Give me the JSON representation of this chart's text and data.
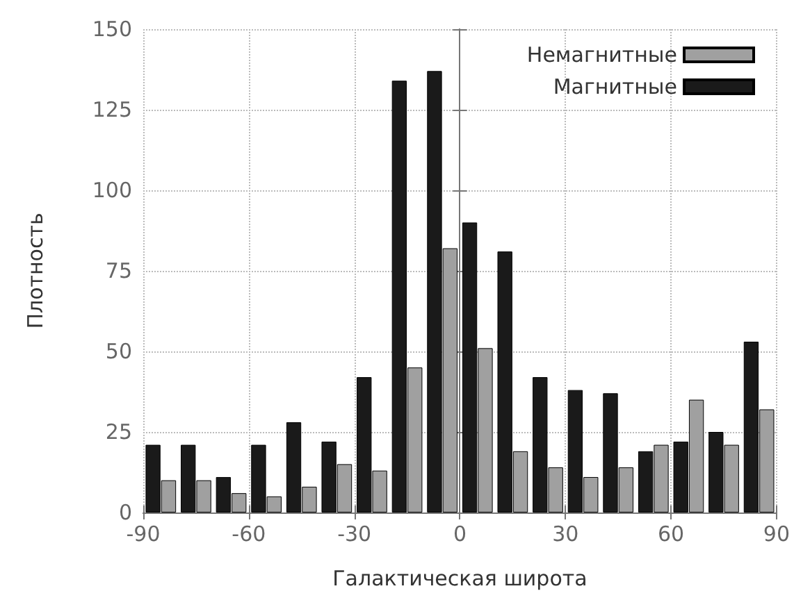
{
  "chart_data": {
    "type": "bar",
    "xlabel": "Галактическая широта",
    "ylabel": "Плотность",
    "x": [
      -85,
      -75,
      -65,
      -55,
      -45,
      -35,
      -25,
      -15,
      -5,
      5,
      15,
      25,
      35,
      45,
      55,
      65,
      75,
      85
    ],
    "series": [
      {
        "name": "Магнитные",
        "color": "#1a1a1a",
        "values": [
          21,
          21,
          11,
          21,
          28,
          22,
          42,
          134,
          137,
          90,
          81,
          42,
          38,
          37,
          19,
          22,
          25,
          53
        ]
      },
      {
        "name": "Немагнитные",
        "color": "#a0a0a0",
        "values": [
          10,
          10,
          6,
          5,
          8,
          15,
          13,
          45,
          82,
          51,
          19,
          14,
          11,
          14,
          21,
          35,
          21,
          32
        ]
      }
    ],
    "xlim": [
      -90,
      90
    ],
    "xticks": [
      -90,
      -60,
      -30,
      0,
      30,
      60,
      90
    ],
    "ylim": [
      0,
      150
    ],
    "yticks": [
      0,
      25,
      50,
      75,
      100,
      125,
      150
    ],
    "grid": true,
    "legend": "top right"
  }
}
